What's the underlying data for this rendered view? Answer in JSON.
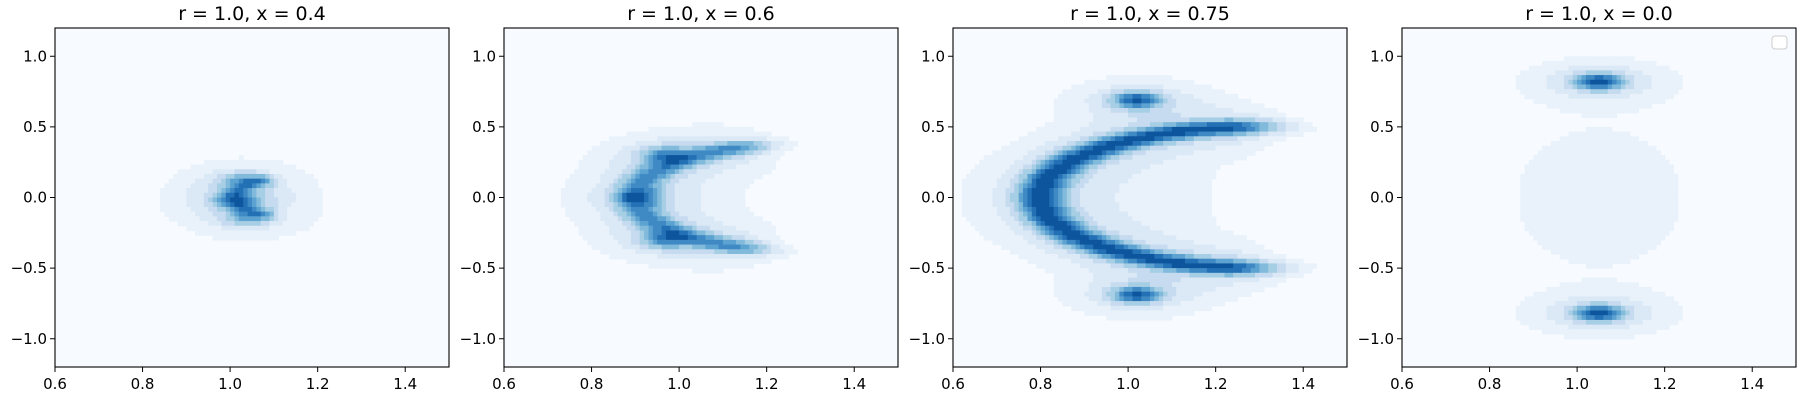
{
  "chart_data": [
    {
      "type": "heatmap",
      "subtype": "filled-contour-density",
      "title": "r = 1.0, x = 0.4",
      "xlim": [
        0.6,
        1.5
      ],
      "ylim": [
        -1.2,
        1.2
      ],
      "xticks": [
        0.6,
        0.8,
        1.0,
        1.2,
        1.4
      ],
      "yticks": [
        -1.0,
        -0.5,
        0.0,
        0.5,
        1.0
      ],
      "xticklabels": [
        "0.6",
        "0.8",
        "1.0",
        "1.2",
        "1.4"
      ],
      "yticklabels": [
        "−1.0",
        "−0.5",
        "0.0",
        "0.5",
        "1.0"
      ],
      "colormap": "Blues",
      "shape": "crescent",
      "density": {
        "arc_center": [
          1.16,
          0.0
        ],
        "arc_radius": 0.15,
        "arc_angle_deg": [
          130,
          230
        ],
        "arc_thickness": 0.035,
        "peaks": [
          [
            1.02,
            -0.02,
            1.0
          ],
          [
            1.03,
            0.12,
            0.8
          ],
          [
            1.04,
            -0.15,
            0.8
          ]
        ],
        "background_spread": [
          0.18,
          0.45
        ]
      }
    },
    {
      "type": "heatmap",
      "subtype": "filled-contour-density",
      "title": "r = 1.0, x = 0.6",
      "xlim": [
        0.6,
        1.5
      ],
      "ylim": [
        -1.2,
        1.2
      ],
      "xticks": [
        0.6,
        0.8,
        1.0,
        1.2,
        1.4
      ],
      "yticks": [
        -1.0,
        -0.5,
        0.0,
        0.5,
        1.0
      ],
      "xticklabels": [
        "0.6",
        "0.8",
        "1.0",
        "1.2",
        "1.4"
      ],
      "yticklabels": [
        "−1.0",
        "−0.5",
        "0.0",
        "0.5",
        "1.0"
      ],
      "colormap": "Blues",
      "shape": "crescent",
      "density": {
        "arc_center": [
          1.28,
          0.0
        ],
        "arc_radius": 0.38,
        "arc_angle_deg": [
          115,
          245
        ],
        "arc_thickness": 0.045,
        "peaks": [
          [
            0.97,
            0.3,
            1.0
          ],
          [
            0.97,
            -0.3,
            1.0
          ],
          [
            0.91,
            0.0,
            0.7
          ]
        ],
        "background_spread": [
          0.2,
          0.55
        ]
      }
    },
    {
      "type": "heatmap",
      "subtype": "filled-contour-density",
      "title": "r = 1.0, x = 0.75",
      "xlim": [
        0.6,
        1.5
      ],
      "ylim": [
        -1.2,
        1.2
      ],
      "xticks": [
        0.6,
        0.8,
        1.0,
        1.2,
        1.4
      ],
      "yticks": [
        -1.0,
        -0.5,
        0.0,
        0.5,
        1.0
      ],
      "xticklabels": [
        "0.6",
        "0.8",
        "1.0",
        "1.2",
        "1.4"
      ],
      "yticklabels": [
        "−1.0",
        "−0.5",
        "0.0",
        "0.5",
        "1.0"
      ],
      "colormap": "Blues",
      "shape": "c-shape",
      "density": {
        "arc_center": [
          1.3,
          0.0
        ],
        "arc_radius": 0.5,
        "arc_angle_deg": [
          100,
          260
        ],
        "arc_thickness": 0.05,
        "peaks": [
          [
            1.02,
            0.69,
            1.0
          ],
          [
            1.02,
            -0.69,
            1.0
          ]
        ],
        "background_spread": [
          0.22,
          0.6
        ]
      }
    },
    {
      "type": "heatmap",
      "subtype": "filled-contour-density",
      "title": "r = 1.0, x = 0.0",
      "xlim": [
        0.6,
        1.5
      ],
      "ylim": [
        -1.2,
        1.2
      ],
      "xticks": [
        0.6,
        0.8,
        1.0,
        1.2,
        1.4
      ],
      "yticks": [
        -1.0,
        -0.5,
        0.0,
        0.5,
        1.0
      ],
      "xticklabels": [
        "0.6",
        "0.8",
        "1.0",
        "1.2",
        "1.4"
      ],
      "yticklabels": [
        "−1.0",
        "−0.5",
        "0.0",
        "0.5",
        "1.0"
      ],
      "colormap": "Blues",
      "shape": "two-lobes",
      "empty_legend": true,
      "legend_loc": "upper right",
      "density": {
        "arc_center": null,
        "arc_radius": 0,
        "arc_angle_deg": [
          0,
          0
        ],
        "arc_thickness": 0,
        "peaks": [
          [
            1.05,
            0.82,
            1.0
          ],
          [
            1.05,
            -0.82,
            1.0
          ]
        ],
        "background_spread": [
          0.25,
          0.65
        ]
      }
    }
  ],
  "colors": {
    "levels": [
      "#f7fbff",
      "#e9f2fb",
      "#dbe9f6",
      "#c6dbef",
      "#a6cee4",
      "#82badb",
      "#5da3d1",
      "#3f89c4",
      "#2370b5",
      "#0d559c"
    ]
  }
}
